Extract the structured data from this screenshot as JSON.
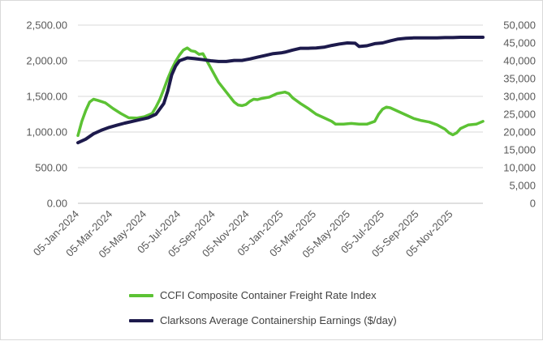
{
  "chart_data": {
    "type": "line",
    "title": "",
    "xlabel": "",
    "ylabel": "",
    "y_left_ticks": [
      "0.00",
      "500.00",
      "1,000.00",
      "1,500.00",
      "2,000.00",
      "2,500.00"
    ],
    "y_right_ticks": [
      "0",
      "5,000",
      "10,000",
      "15,000",
      "20,000",
      "25,000",
      "30,000",
      "35,000",
      "40,000",
      "45,000",
      "50,000"
    ],
    "y_left_range": [
      0,
      2500
    ],
    "y_right_range": [
      0,
      50000
    ],
    "x_ticks": [
      "05-Jan-2024",
      "05-Mar-2024",
      "05-May-2024",
      "05-Jul-2024",
      "05-Sep-2024",
      "05-Nov-2024",
      "05-Jan-2025",
      "05-Mar-2025",
      "05-May-2025",
      "05-Jul-2025",
      "05-Sep-2025",
      "05-Nov-2025"
    ],
    "x_range": [
      "2024-01-05",
      "2025-12-31"
    ],
    "grid": "horizontal",
    "legend_position": "bottom",
    "series": [
      {
        "name": "CCFI Composite Container Freight Rate Index",
        "axis": "left",
        "color": "#5cc234",
        "points": [
          [
            "2024-01-05",
            950
          ],
          [
            "2024-01-12",
            1150
          ],
          [
            "2024-01-19",
            1300
          ],
          [
            "2024-01-26",
            1420
          ],
          [
            "2024-02-02",
            1460
          ],
          [
            "2024-02-09",
            1445
          ],
          [
            "2024-02-23",
            1410
          ],
          [
            "2024-03-08",
            1330
          ],
          [
            "2024-03-22",
            1260
          ],
          [
            "2024-04-05",
            1200
          ],
          [
            "2024-04-19",
            1195
          ],
          [
            "2024-05-03",
            1215
          ],
          [
            "2024-05-17",
            1260
          ],
          [
            "2024-05-24",
            1350
          ],
          [
            "2024-05-31",
            1460
          ],
          [
            "2024-06-07",
            1600
          ],
          [
            "2024-06-14",
            1750
          ],
          [
            "2024-06-21",
            1880
          ],
          [
            "2024-06-28",
            1990
          ],
          [
            "2024-07-05",
            2080
          ],
          [
            "2024-07-12",
            2150
          ],
          [
            "2024-07-19",
            2180
          ],
          [
            "2024-07-26",
            2140
          ],
          [
            "2024-08-02",
            2130
          ],
          [
            "2024-08-09",
            2090
          ],
          [
            "2024-08-16",
            2100
          ],
          [
            "2024-08-23",
            2000
          ],
          [
            "2024-08-30",
            1900
          ],
          [
            "2024-09-06",
            1800
          ],
          [
            "2024-09-13",
            1700
          ],
          [
            "2024-09-27",
            1560
          ],
          [
            "2024-10-11",
            1420
          ],
          [
            "2024-10-18",
            1380
          ],
          [
            "2024-10-25",
            1370
          ],
          [
            "2024-11-01",
            1385
          ],
          [
            "2024-11-08",
            1430
          ],
          [
            "2024-11-15",
            1460
          ],
          [
            "2024-11-22",
            1455
          ],
          [
            "2024-11-29",
            1470
          ],
          [
            "2024-12-13",
            1490
          ],
          [
            "2024-12-27",
            1540
          ],
          [
            "2025-01-10",
            1560
          ],
          [
            "2025-01-17",
            1540
          ],
          [
            "2025-01-24",
            1480
          ],
          [
            "2025-02-07",
            1400
          ],
          [
            "2025-02-21",
            1330
          ],
          [
            "2025-03-07",
            1250
          ],
          [
            "2025-03-21",
            1200
          ],
          [
            "2025-04-04",
            1150
          ],
          [
            "2025-04-11",
            1110
          ],
          [
            "2025-04-25",
            1110
          ],
          [
            "2025-05-09",
            1120
          ],
          [
            "2025-05-23",
            1110
          ],
          [
            "2025-06-06",
            1110
          ],
          [
            "2025-06-20",
            1150
          ],
          [
            "2025-06-27",
            1250
          ],
          [
            "2025-07-04",
            1320
          ],
          [
            "2025-07-11",
            1350
          ],
          [
            "2025-07-18",
            1340
          ],
          [
            "2025-08-01",
            1290
          ],
          [
            "2025-08-15",
            1240
          ],
          [
            "2025-08-29",
            1190
          ],
          [
            "2025-09-12",
            1160
          ],
          [
            "2025-09-26",
            1140
          ],
          [
            "2025-10-10",
            1100
          ],
          [
            "2025-10-24",
            1040
          ],
          [
            "2025-10-31",
            990
          ],
          [
            "2025-11-07",
            960
          ],
          [
            "2025-11-14",
            990
          ],
          [
            "2025-11-21",
            1050
          ],
          [
            "2025-12-05",
            1100
          ],
          [
            "2025-12-19",
            1110
          ],
          [
            "2025-12-31",
            1150
          ]
        ]
      },
      {
        "name": "Clarksons Average Containership Earnings ($/day)",
        "axis": "right",
        "color": "#1d1a4c",
        "points": [
          [
            "2024-01-05",
            17000
          ],
          [
            "2024-01-19",
            18000
          ],
          [
            "2024-02-02",
            19500
          ],
          [
            "2024-02-16",
            20500
          ],
          [
            "2024-03-01",
            21300
          ],
          [
            "2024-03-15",
            21900
          ],
          [
            "2024-03-29",
            22500
          ],
          [
            "2024-04-12",
            23000
          ],
          [
            "2024-04-26",
            23500
          ],
          [
            "2024-05-10",
            24000
          ],
          [
            "2024-05-24",
            25000
          ],
          [
            "2024-06-07",
            28000
          ],
          [
            "2024-06-14",
            31500
          ],
          [
            "2024-06-21",
            36000
          ],
          [
            "2024-06-28",
            38500
          ],
          [
            "2024-07-05",
            40000
          ],
          [
            "2024-07-19",
            40800
          ],
          [
            "2024-08-02",
            40600
          ],
          [
            "2024-08-16",
            40300
          ],
          [
            "2024-08-30",
            40000
          ],
          [
            "2024-09-13",
            39800
          ],
          [
            "2024-09-27",
            39800
          ],
          [
            "2024-10-11",
            40100
          ],
          [
            "2024-10-25",
            40100
          ],
          [
            "2024-11-08",
            40500
          ],
          [
            "2024-11-22",
            41000
          ],
          [
            "2024-12-06",
            41500
          ],
          [
            "2024-12-20",
            42000
          ],
          [
            "2025-01-03",
            42200
          ],
          [
            "2025-01-10",
            42400
          ],
          [
            "2025-01-24",
            43000
          ],
          [
            "2025-02-07",
            43500
          ],
          [
            "2025-02-21",
            43500
          ],
          [
            "2025-03-07",
            43600
          ],
          [
            "2025-03-21",
            43800
          ],
          [
            "2025-04-04",
            44300
          ],
          [
            "2025-04-18",
            44700
          ],
          [
            "2025-05-02",
            45000
          ],
          [
            "2025-05-16",
            44900
          ],
          [
            "2025-05-23",
            44000
          ],
          [
            "2025-06-06",
            44200
          ],
          [
            "2025-06-20",
            44800
          ],
          [
            "2025-07-04",
            45000
          ],
          [
            "2025-07-18",
            45600
          ],
          [
            "2025-08-01",
            46100
          ],
          [
            "2025-08-15",
            46300
          ],
          [
            "2025-08-29",
            46400
          ],
          [
            "2025-09-12",
            46400
          ],
          [
            "2025-09-26",
            46400
          ],
          [
            "2025-10-10",
            46400
          ],
          [
            "2025-10-24",
            46500
          ],
          [
            "2025-11-07",
            46500
          ],
          [
            "2025-11-21",
            46600
          ],
          [
            "2025-12-05",
            46600
          ],
          [
            "2025-12-31",
            46600
          ]
        ]
      }
    ]
  }
}
